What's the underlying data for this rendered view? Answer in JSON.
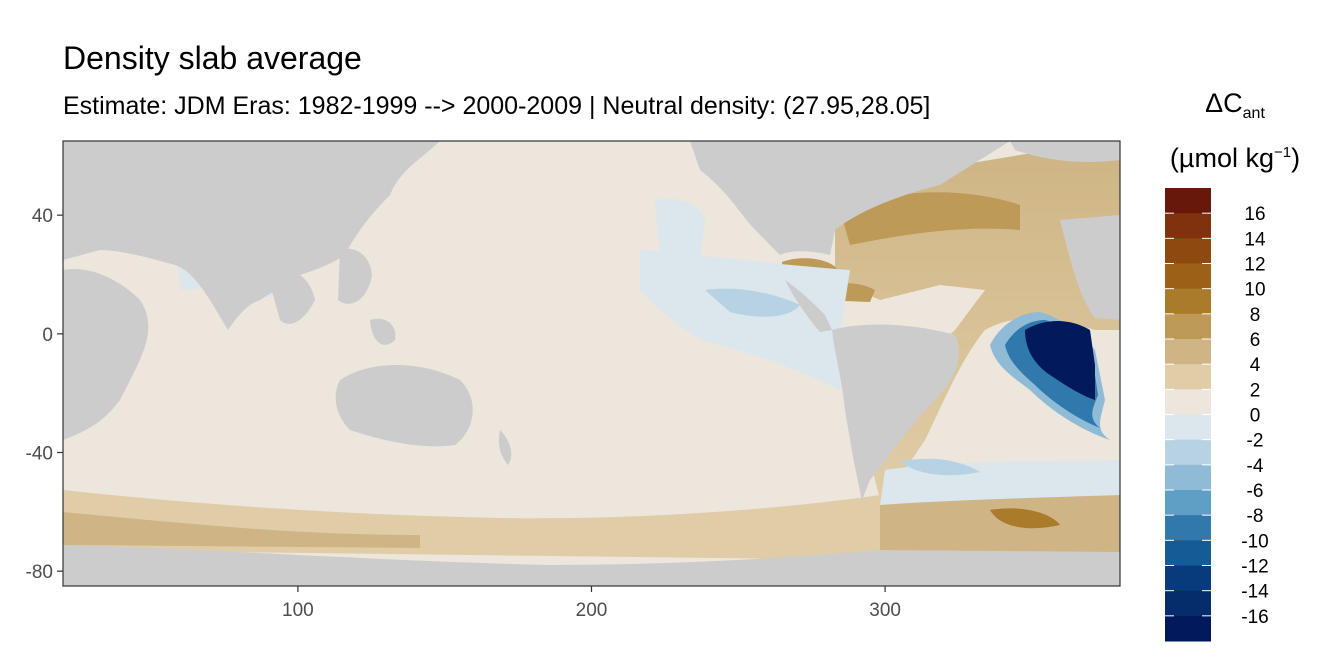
{
  "title": "Density slab average",
  "subtitle": "Estimate: JDM Eras: 1982-1999 --> 2000-2009 | Neutral density: (27.95,28.05]",
  "legend": {
    "title_symbol": "ΔC",
    "title_subscript": "ant",
    "unit_open": "(µmol kg",
    "unit_sup": "−1",
    "unit_close": ")"
  },
  "map_data": {
    "type": "gridded-map",
    "x_ticks": [
      "100",
      "200",
      "300"
    ],
    "x_tick_values": [
      100,
      200,
      300
    ],
    "y_ticks": [
      "40",
      "0",
      "-40",
      "-80"
    ],
    "y_tick_values": [
      40,
      0,
      -40,
      -80
    ],
    "xlim": [
      20,
      380
    ],
    "ylim": [
      -85,
      65
    ],
    "legend_labels": [
      "16",
      "14",
      "12",
      "10",
      "8",
      "6",
      "4",
      "2",
      "0",
      "-2",
      "-4",
      "-6",
      "-8",
      "-10",
      "-12",
      "-14",
      "-16"
    ],
    "legend_colors": [
      "#67180a",
      "#80320c",
      "#8e4a0e",
      "#9c6116",
      "#ab7b2c",
      "#bd9a58",
      "#cfb585",
      "#e0cda7",
      "#ece6dc",
      "#dbe6ed",
      "#b7d2e3",
      "#8fbbd6",
      "#5f9ec5",
      "#3079ad",
      "#135c96",
      "#083b7b",
      "#062d6b",
      "#021a5c"
    ],
    "land_color": "#cccccc",
    "ocean_nodata_color": "#ffffff"
  }
}
